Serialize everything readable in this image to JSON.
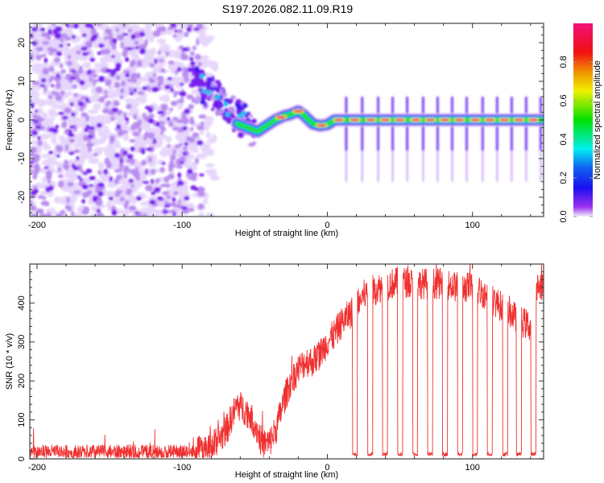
{
  "title": "S197.2026.082.11.09.R19",
  "colors": {
    "frame": "#666666",
    "snr_line": "#f03030",
    "noise_light": "#e6d6fb",
    "noise_mid": "#b98cf0",
    "noise_dark": "#7a1ff0"
  },
  "chart_data": [
    {
      "type": "heatmap",
      "title": "S197.2026.082.11.09.R19",
      "xlabel": "Height of straight line (km)",
      "ylabel": "Frequency (Hz)",
      "xlim": [
        -205,
        149
      ],
      "ylim": [
        -25,
        25
      ],
      "xticks": [
        -200,
        -100,
        0,
        100
      ],
      "xtick_labels": [
        "-200",
        "-100",
        "0",
        "100"
      ],
      "yticks": [
        -20,
        -10,
        0,
        10,
        20
      ],
      "ytick_labels": [
        "-20",
        "-10",
        "0",
        "10",
        "20"
      ],
      "grid": false,
      "noise_region": {
        "x_from": -205,
        "x_to": -85,
        "freq_range": [
          -25,
          25
        ]
      },
      "transition_scatter": {
        "x_from": -95,
        "x_to": -50,
        "freq_from": 12,
        "freq_to": -3
      },
      "signal_track": {
        "x": [
          -62,
          -55,
          -48,
          -42,
          -36,
          -30,
          -25,
          -20,
          -16,
          -10,
          -5,
          0,
          5,
          149
        ],
        "freq": [
          -1,
          -2,
          -3,
          -1.5,
          0,
          1,
          1.5,
          2.3,
          1.2,
          -1,
          -1.5,
          -1.2,
          0,
          0
        ]
      },
      "bright_segments_x": [
        -32,
        -20,
        -4,
        8,
        19,
        30,
        40,
        50,
        61,
        71,
        81,
        91,
        102,
        112,
        122,
        132,
        142
      ],
      "colorbar": {
        "label": "Normalized spectral amplitude",
        "range": [
          0.0,
          1.0
        ],
        "ticks": [
          0.0,
          0.2,
          0.4,
          0.6,
          0.8
        ],
        "tick_labels": [
          "0.0",
          "0.2",
          "0.4",
          "0.6",
          "0.8"
        ],
        "stops": [
          {
            "v": 0.0,
            "color": "#f4eefc"
          },
          {
            "v": 0.05,
            "color": "#9b30f0"
          },
          {
            "v": 0.15,
            "color": "#1a10f0"
          },
          {
            "v": 0.25,
            "color": "#1060f0"
          },
          {
            "v": 0.35,
            "color": "#00f0f0"
          },
          {
            "v": 0.5,
            "color": "#00e000"
          },
          {
            "v": 0.65,
            "color": "#f0f000"
          },
          {
            "v": 0.75,
            "color": "#f09000"
          },
          {
            "v": 0.85,
            "color": "#f01010"
          },
          {
            "v": 1.0,
            "color": "#f0107a"
          }
        ]
      }
    },
    {
      "type": "line",
      "xlabel": "Height of straight line (km)",
      "ylabel": "SNR (10 * v/v)",
      "xlim": [
        -205,
        149
      ],
      "ylim": [
        0,
        500
      ],
      "xticks": [
        -200,
        -100,
        0,
        100
      ],
      "xtick_labels": [
        "-200",
        "-100",
        "0",
        "100"
      ],
      "yticks": [
        0,
        100,
        200,
        300,
        400
      ],
      "ytick_labels": [
        "0",
        "100",
        "200",
        "300",
        "400"
      ],
      "grid": false,
      "series": [
        {
          "name": "SNR",
          "envelope_x": [
            -205,
            -90,
            -80,
            -70,
            -62,
            -55,
            -50,
            -45,
            -40,
            -35,
            -30,
            -25,
            -20,
            -15,
            -10,
            -5,
            0,
            5,
            10,
            15,
            20,
            25,
            30,
            40,
            50,
            60,
            70,
            80,
            90,
            100,
            110,
            120,
            125,
            130,
            135,
            140,
            145,
            149
          ],
          "envelope_y": [
            18,
            18,
            30,
            70,
            140,
            120,
            90,
            40,
            40,
            80,
            150,
            200,
            230,
            250,
            250,
            270,
            300,
            320,
            350,
            370,
            390,
            420,
            430,
            445,
            455,
            450,
            450,
            450,
            440,
            440,
            420,
            390,
            380,
            360,
            350,
            340,
            440,
            450
          ],
          "noise_amplitude": 18,
          "dropouts_x": [
            19,
            29.5,
            39.8,
            50.2,
            60.5,
            70.8,
            81,
            91.5,
            101.8,
            112,
            122.5,
            132,
            142
          ],
          "dropout_width_km": 3.5,
          "dropout_level": 12
        }
      ]
    }
  ]
}
